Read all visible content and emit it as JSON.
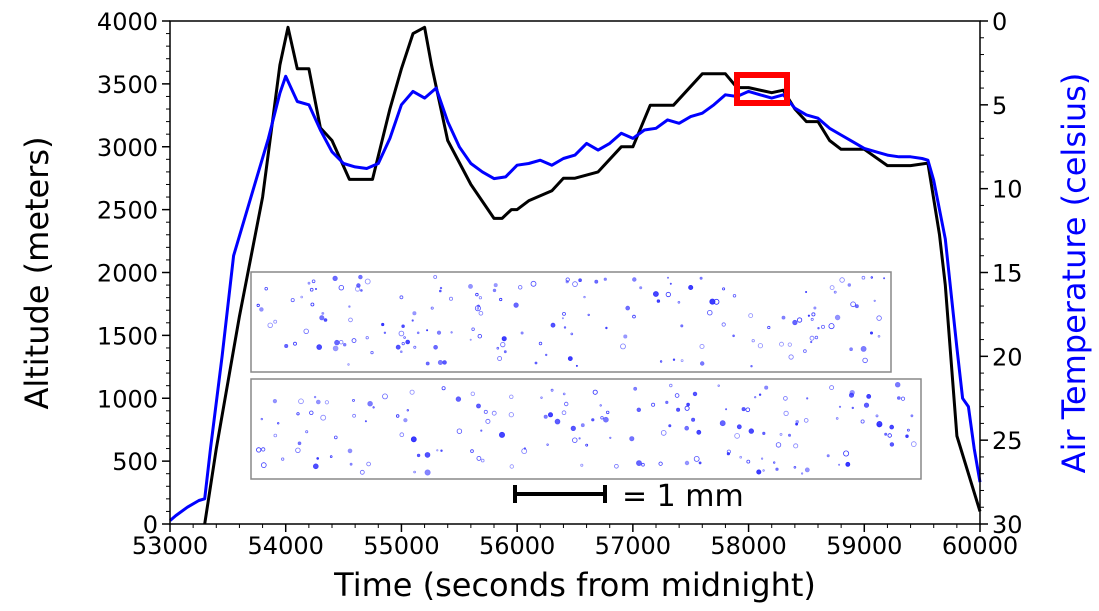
{
  "chart_data": {
    "type": "line",
    "title": "",
    "xlabel": "Time (seconds from midnight)",
    "ylabel_left": "Altitude (meters)",
    "ylabel_right": "Air Temperature (celsius)",
    "xlim": [
      53000,
      60000
    ],
    "ylim_left": [
      0,
      4000
    ],
    "ylim_right": [
      30,
      0
    ],
    "x_ticks": [
      53000,
      54000,
      55000,
      56000,
      57000,
      58000,
      59000,
      60000
    ],
    "y_ticks_left": [
      0,
      500,
      1000,
      1500,
      2000,
      2500,
      3000,
      3500,
      4000
    ],
    "y_ticks_right": [
      0,
      5,
      10,
      15,
      20,
      25,
      30
    ],
    "grid": false,
    "colors": {
      "altitude": "#000000",
      "temperature": "#0000ff",
      "highlight": "#ff0000",
      "inset_border": "#888888"
    },
    "series": [
      {
        "axis": "left",
        "x": [
          53300,
          53400,
          53600,
          53800,
          53950,
          54020,
          54100,
          54200,
          54300,
          54400,
          54550,
          54750,
          54900,
          55000,
          55100,
          55200,
          55260,
          55400,
          55600,
          55800,
          55870,
          55950,
          56000,
          56100,
          56300,
          56400,
          56500,
          56700,
          56900,
          57000,
          57150,
          57350,
          57600,
          57800,
          57900,
          58000,
          58200,
          58300,
          58400,
          58500,
          58600,
          58700,
          58800,
          59000,
          59200,
          59400,
          59550,
          59650,
          59700,
          59800,
          60000
        ],
        "values": [
          0,
          600,
          1650,
          2600,
          3650,
          3950,
          3620,
          3620,
          3150,
          3050,
          2740,
          2740,
          3300,
          3620,
          3900,
          3950,
          3650,
          3050,
          2700,
          2430,
          2430,
          2500,
          2500,
          2570,
          2650,
          2750,
          2750,
          2800,
          3000,
          3000,
          3330,
          3330,
          3580,
          3580,
          3470,
          3470,
          3430,
          3450,
          3300,
          3200,
          3200,
          3050,
          2980,
          2980,
          2850,
          2850,
          2870,
          2300,
          1900,
          700,
          100
        ]
      },
      {
        "axis": "right",
        "x": [
          53000,
          53050,
          53150,
          53250,
          53300,
          53350,
          53450,
          53550,
          53700,
          53850,
          53950,
          54000,
          54100,
          54200,
          54300,
          54400,
          54500,
          54600,
          54700,
          54800,
          54900,
          55000,
          55100,
          55200,
          55300,
          55400,
          55500,
          55600,
          55700,
          55800,
          55900,
          56000,
          56100,
          56200,
          56300,
          56400,
          56500,
          56600,
          56700,
          56800,
          56900,
          57000,
          57100,
          57200,
          57300,
          57400,
          57500,
          57600,
          57700,
          57800,
          57900,
          58000,
          58100,
          58200,
          58300,
          58400,
          58500,
          58600,
          58700,
          58800,
          58900,
          59000,
          59100,
          59200,
          59300,
          59400,
          59500,
          59550,
          59600,
          59700,
          59800,
          59850,
          59900,
          59950,
          60000
        ],
        "values": [
          29.8,
          29.5,
          29.0,
          28.6,
          28.5,
          25.5,
          20.0,
          14.0,
          10.5,
          7.0,
          4.3,
          3.3,
          4.8,
          5.0,
          6.5,
          7.8,
          8.5,
          8.7,
          8.8,
          8.5,
          7.0,
          5.0,
          4.2,
          4.6,
          4.0,
          6.0,
          7.5,
          8.5,
          9.0,
          9.4,
          9.3,
          8.6,
          8.5,
          8.3,
          8.6,
          8.2,
          8.0,
          7.3,
          7.7,
          7.3,
          6.7,
          7.0,
          6.5,
          6.4,
          5.9,
          6.1,
          5.7,
          5.5,
          5.0,
          4.4,
          4.5,
          4.2,
          4.4,
          4.6,
          4.4,
          5.2,
          5.6,
          5.8,
          6.4,
          6.8,
          7.2,
          7.6,
          7.8,
          8.0,
          8.1,
          8.1,
          8.2,
          8.3,
          9.5,
          13.0,
          19.5,
          22.5,
          23.0,
          25.5,
          27.5
        ]
      }
    ],
    "annotations": {
      "scale_bar_label": "= 1 mm"
    }
  }
}
